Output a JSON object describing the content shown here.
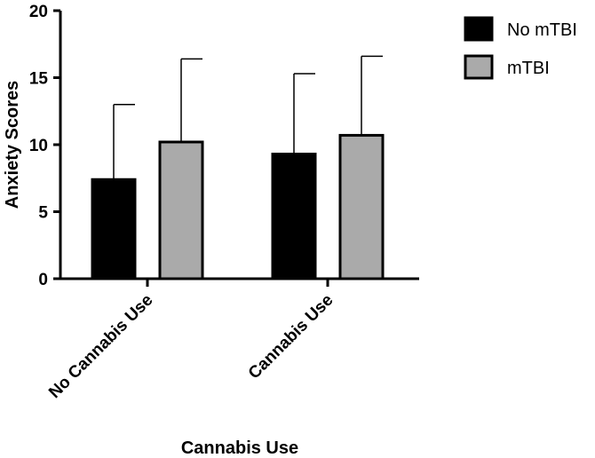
{
  "chart_data": {
    "type": "bar",
    "categories": [
      "No Cannabis Use",
      "Cannabis Use"
    ],
    "series": [
      {
        "name": "No mTBI",
        "values": [
          7.4,
          9.3
        ],
        "error_plus": [
          5.6,
          6.0
        ],
        "color": "#000000"
      },
      {
        "name": "mTBI",
        "values": [
          10.2,
          10.7
        ],
        "error_plus": [
          6.2,
          5.9
        ],
        "color": "#aaaaaa"
      }
    ],
    "title": "",
    "xlabel": "Cannabis Use",
    "ylabel": "Anxiety Scores",
    "ylim": [
      0,
      20
    ],
    "yticks": [
      0,
      5,
      10,
      15,
      20
    ],
    "error_bars": "upper only",
    "legend_position": "top-right",
    "grid": false
  }
}
